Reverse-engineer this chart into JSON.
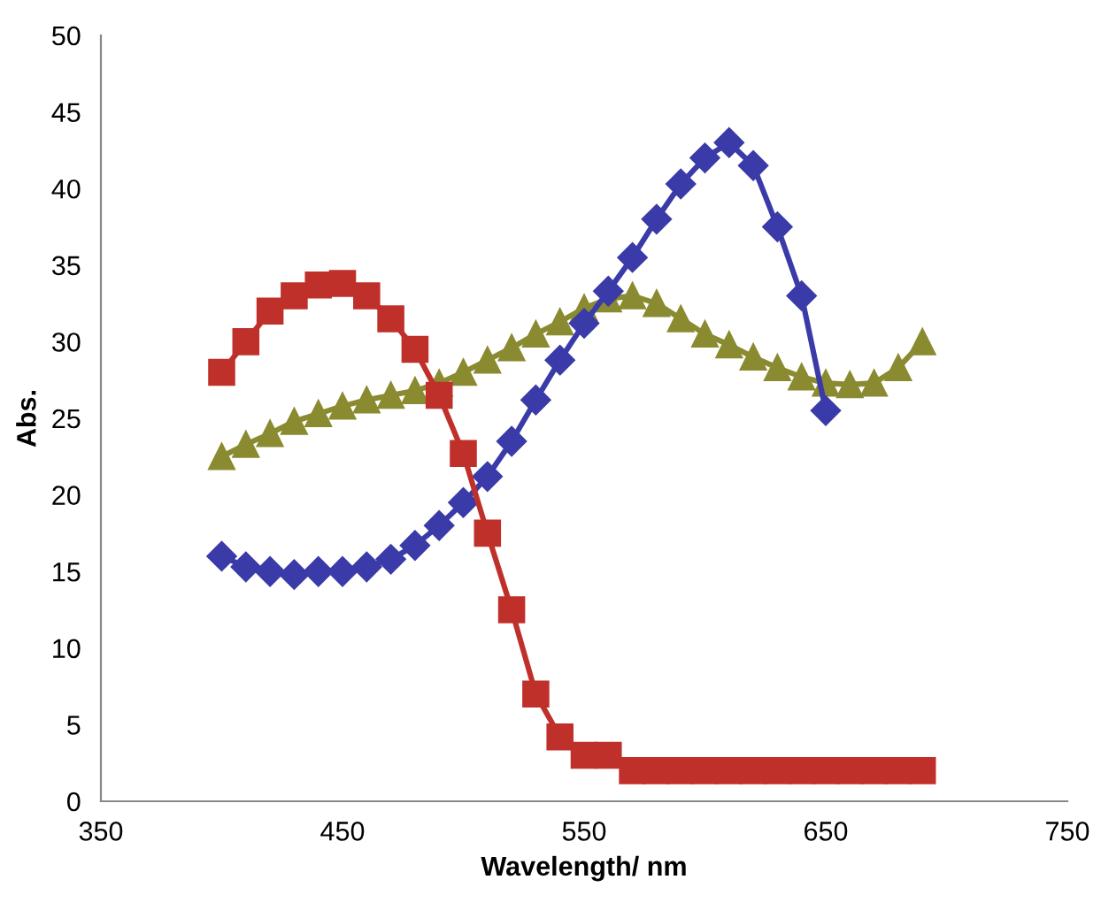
{
  "chart_data": {
    "type": "line",
    "xlabel": "Wavelength/ nm",
    "ylabel": "Abs.",
    "xlim": [
      350,
      750
    ],
    "xticks": [
      350,
      450,
      550,
      650,
      750
    ],
    "ylim": [
      0,
      50
    ],
    "yticks": [
      0,
      5,
      10,
      15,
      20,
      25,
      30,
      35,
      40,
      45,
      50
    ],
    "grid": false,
    "legend": false,
    "line_style": "solid",
    "series": [
      {
        "color": "#c0302a",
        "marker": "square",
        "x": [
          400,
          410,
          420,
          430,
          440,
          450,
          460,
          470,
          480,
          490,
          500,
          510,
          520,
          530,
          540,
          550,
          560,
          570,
          580,
          590,
          600,
          610,
          620,
          630,
          640,
          650,
          660,
          670,
          680,
          690
        ],
        "values": [
          28,
          30,
          32,
          33,
          33.7,
          33.8,
          33,
          31.5,
          29.5,
          26.5,
          22.7,
          17.5,
          12.5,
          7,
          4.2,
          3,
          3,
          2,
          2,
          2,
          2,
          2,
          2,
          2,
          2,
          2,
          2,
          2,
          2,
          2
        ]
      },
      {
        "color": "#3a3aa8",
        "marker": "diamond",
        "x": [
          400,
          410,
          420,
          430,
          440,
          450,
          460,
          470,
          480,
          490,
          500,
          510,
          520,
          530,
          540,
          550,
          560,
          570,
          580,
          590,
          600,
          610,
          620,
          630,
          640,
          650
        ],
        "values": [
          16,
          15.3,
          15,
          14.8,
          15,
          15,
          15.3,
          15.8,
          16.7,
          18,
          19.5,
          21.2,
          23.5,
          26.2,
          28.8,
          31.2,
          33.3,
          35.5,
          38,
          40.3,
          42,
          43,
          41.5,
          37.5,
          33,
          25.5
        ]
      },
      {
        "color": "#8a8a30",
        "marker": "triangle",
        "x": [
          400,
          410,
          420,
          430,
          440,
          450,
          460,
          470,
          480,
          490,
          500,
          510,
          520,
          530,
          540,
          550,
          560,
          570,
          580,
          590,
          600,
          610,
          620,
          630,
          640,
          650,
          660,
          670,
          680,
          690
        ],
        "values": [
          22.5,
          23.3,
          24,
          24.8,
          25.3,
          25.8,
          26.2,
          26.5,
          26.8,
          27.3,
          28,
          28.8,
          29.6,
          30.5,
          31.3,
          32.2,
          32.8,
          33,
          32.5,
          31.5,
          30.5,
          29.8,
          29,
          28.3,
          27.7,
          27.3,
          27.2,
          27.3,
          28.3,
          30
        ]
      }
    ]
  }
}
